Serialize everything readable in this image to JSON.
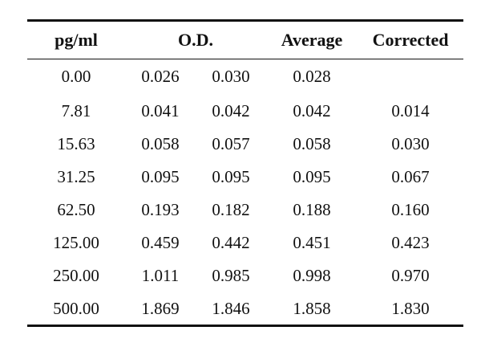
{
  "table": {
    "headers": {
      "pg": "pg/ml",
      "od": "O.D.",
      "average": "Average",
      "corrected": "Corrected"
    },
    "rows": [
      {
        "pg": "0.00",
        "od1": "0.026",
        "od2": "0.030",
        "average": "0.028",
        "corrected": ""
      },
      {
        "pg": "7.81",
        "od1": "0.041",
        "od2": "0.042",
        "average": "0.042",
        "corrected": "0.014"
      },
      {
        "pg": "15.63",
        "od1": "0.058",
        "od2": "0.057",
        "average": "0.058",
        "corrected": "0.030"
      },
      {
        "pg": "31.25",
        "od1": "0.095",
        "od2": "0.095",
        "average": "0.095",
        "corrected": "0.067"
      },
      {
        "pg": "62.50",
        "od1": "0.193",
        "od2": "0.182",
        "average": "0.188",
        "corrected": "0.160"
      },
      {
        "pg": "125.00",
        "od1": "0.459",
        "od2": "0.442",
        "average": "0.451",
        "corrected": "0.423"
      },
      {
        "pg": "250.00",
        "od1": "1.011",
        "od2": "0.985",
        "average": "0.998",
        "corrected": "0.970"
      },
      {
        "pg": "500.00",
        "od1": "1.869",
        "od2": "1.846",
        "average": "1.858",
        "corrected": "1.830"
      }
    ]
  }
}
